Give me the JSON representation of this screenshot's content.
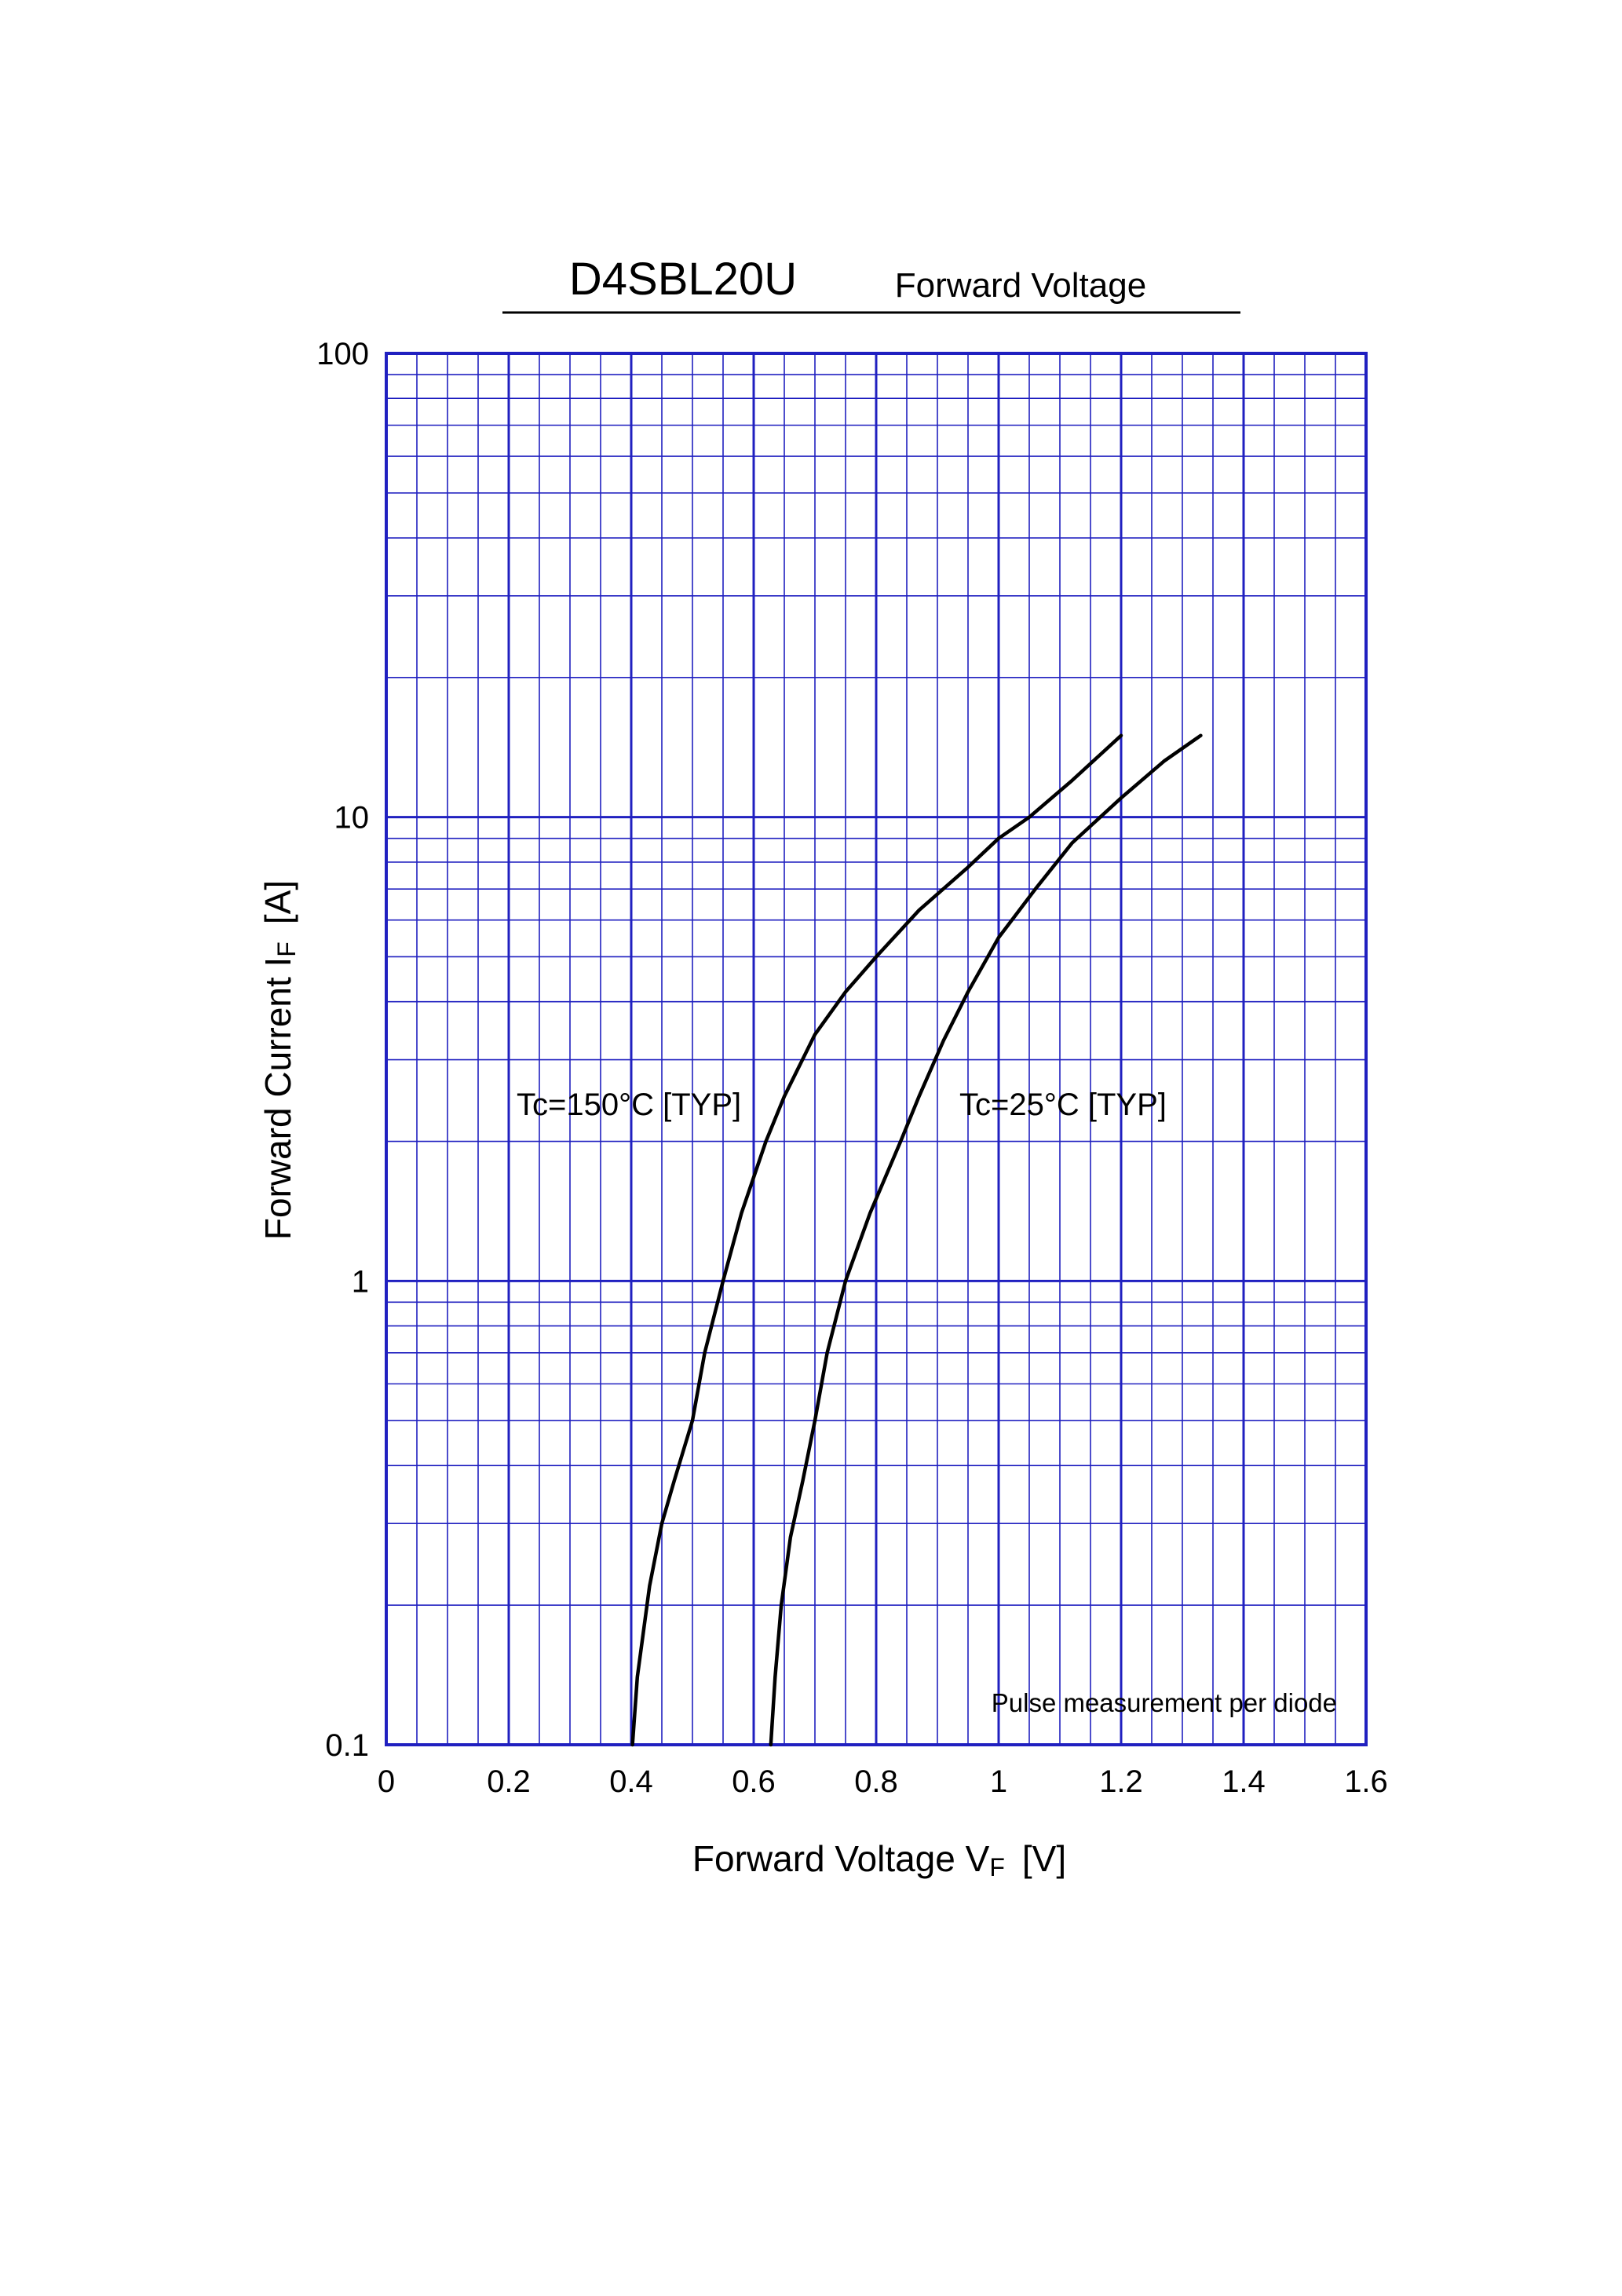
{
  "chart_data": {
    "type": "line",
    "title": "D4SBL20U",
    "subtitle": "Forward Voltage",
    "xlabel": {
      "main": "Forward Voltage  V",
      "sub": "F",
      "unit": "[V]"
    },
    "ylabel": {
      "main": "Forward Current  I",
      "sub": "F",
      "unit": "[A]"
    },
    "xlim": [
      0,
      1.6
    ],
    "ylim": [
      0.1,
      100
    ],
    "y_scale": "log",
    "x_ticks": [
      0,
      0.2,
      0.4,
      0.6,
      0.8,
      1,
      1.2,
      1.4,
      1.6
    ],
    "x_tick_labels": [
      "0",
      "0.2",
      "0.4",
      "0.6",
      "0.8",
      "1",
      "1.2",
      "1.4",
      "1.6"
    ],
    "y_ticks": [
      0.1,
      1,
      10,
      100
    ],
    "y_tick_labels": [
      "0.1",
      "1",
      "10",
      "100"
    ],
    "grid": true,
    "colors": {
      "grid": "#2020c0",
      "curve": "#000000"
    },
    "annotations": [
      "Tc=150°C [TYP]",
      "Tc=25°C [TYP]",
      "Pulse  measurement  per  diode"
    ],
    "series": [
      {
        "x": [
          0.402,
          0.41,
          0.43,
          0.45,
          0.47,
          0.5,
          0.52,
          0.55,
          0.58,
          0.62,
          0.65,
          0.7,
          0.75,
          0.8,
          0.87,
          0.95,
          1.0,
          1.05,
          1.12,
          1.2
        ],
        "y": [
          0.1,
          0.14,
          0.22,
          0.3,
          0.37,
          0.5,
          0.7,
          1.0,
          1.4,
          2.0,
          2.5,
          3.4,
          4.2,
          5.0,
          6.3,
          7.8,
          9.0,
          10.0,
          12.0,
          15.0
        ]
      },
      {
        "x": [
          0.628,
          0.635,
          0.645,
          0.66,
          0.68,
          0.7,
          0.72,
          0.75,
          0.79,
          0.84,
          0.87,
          0.91,
          0.95,
          1.0,
          1.06,
          1.12,
          1.2,
          1.27,
          1.33
        ],
        "y": [
          0.1,
          0.14,
          0.2,
          0.28,
          0.37,
          0.5,
          0.7,
          1.0,
          1.4,
          2.0,
          2.5,
          3.3,
          4.2,
          5.5,
          7.0,
          8.8,
          11.0,
          13.2,
          15.0
        ]
      }
    ]
  }
}
